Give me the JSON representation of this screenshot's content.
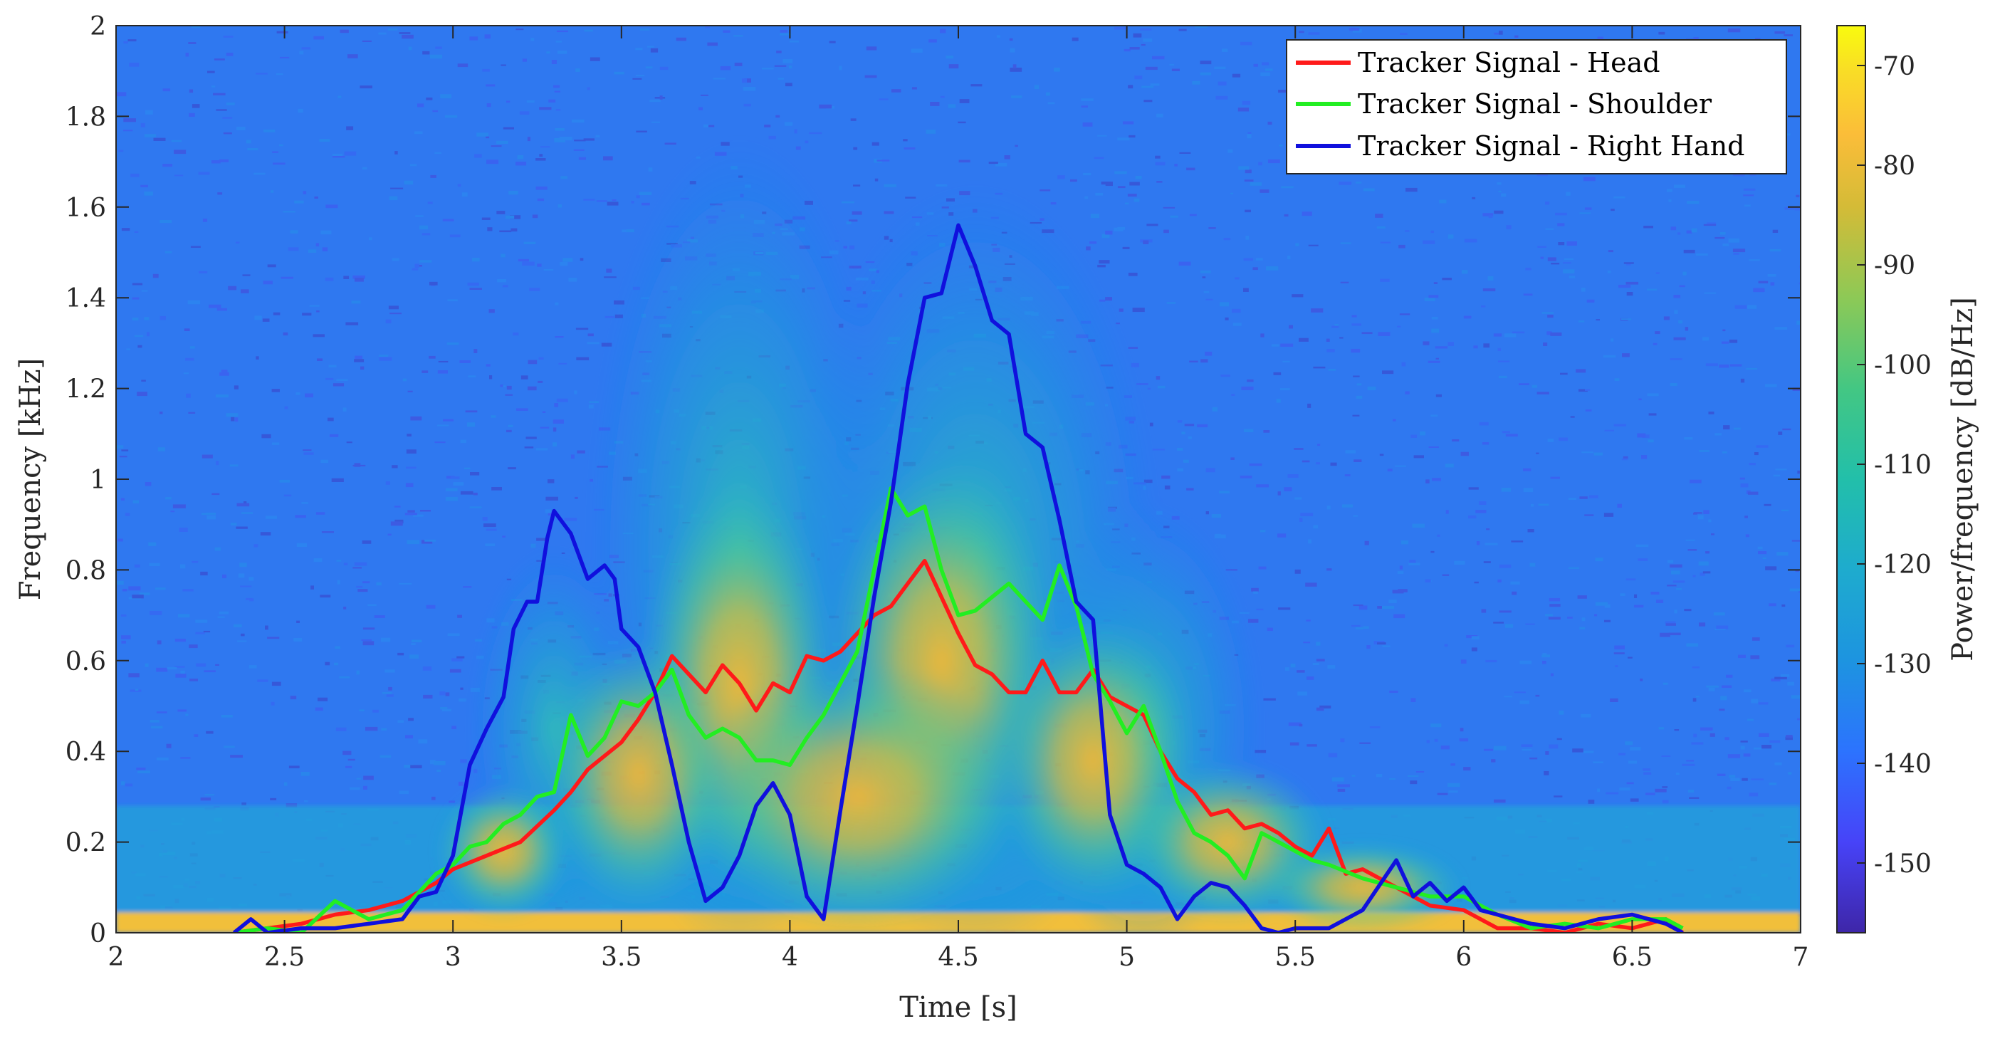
{
  "colors": {
    "head": "#ff1a1a",
    "shoulder": "#22ee22",
    "right_hand": "#1010dd",
    "colormap": [
      "#3e26a8",
      "#4743f8",
      "#2c73fe",
      "#1d94e0",
      "#1eabce",
      "#22bfaa",
      "#43c783",
      "#8dc956",
      "#d4bb37",
      "#fbbd39",
      "#f9dd26",
      "#f9fb0e"
    ]
  },
  "chart_data": {
    "type": "spectrogram",
    "xlabel": "Time [s]",
    "ylabel": "Frequency [kHz]",
    "xlim": [
      2,
      7
    ],
    "ylim": [
      0,
      2
    ],
    "xticks": [
      "2",
      "2.5",
      "3",
      "3.5",
      "4",
      "4.5",
      "5",
      "5.5",
      "6",
      "6.5",
      "7"
    ],
    "yticks": [
      "0",
      "0.2",
      "0.4",
      "0.6",
      "0.8",
      "1",
      "1.2",
      "1.4",
      "1.6",
      "1.8",
      "2"
    ],
    "legend_position": "top-right",
    "colorbar": {
      "label": "Power/frequency [dB/Hz]",
      "range": [
        -157,
        -66
      ],
      "ticks": [
        "-70",
        "-80",
        "-90",
        "-100",
        "-110",
        "-120",
        "-130",
        "-140",
        "-150"
      ]
    },
    "series": [
      {
        "name": "Tracker Signal - Head",
        "color_key": "head",
        "points": [
          [
            2.35,
            0.0
          ],
          [
            2.45,
            0.01
          ],
          [
            2.55,
            0.02
          ],
          [
            2.65,
            0.04
          ],
          [
            2.75,
            0.05
          ],
          [
            2.85,
            0.07
          ],
          [
            2.95,
            0.11
          ],
          [
            3.0,
            0.14
          ],
          [
            3.1,
            0.17
          ],
          [
            3.2,
            0.2
          ],
          [
            3.3,
            0.27
          ],
          [
            3.35,
            0.31
          ],
          [
            3.4,
            0.36
          ],
          [
            3.45,
            0.39
          ],
          [
            3.5,
            0.42
          ],
          [
            3.55,
            0.47
          ],
          [
            3.6,
            0.53
          ],
          [
            3.65,
            0.61
          ],
          [
            3.7,
            0.57
          ],
          [
            3.75,
            0.53
          ],
          [
            3.8,
            0.59
          ],
          [
            3.85,
            0.55
          ],
          [
            3.9,
            0.49
          ],
          [
            3.95,
            0.55
          ],
          [
            4.0,
            0.53
          ],
          [
            4.05,
            0.61
          ],
          [
            4.1,
            0.6
          ],
          [
            4.15,
            0.62
          ],
          [
            4.2,
            0.66
          ],
          [
            4.25,
            0.7
          ],
          [
            4.3,
            0.72
          ],
          [
            4.35,
            0.77
          ],
          [
            4.4,
            0.82
          ],
          [
            4.45,
            0.74
          ],
          [
            4.5,
            0.66
          ],
          [
            4.55,
            0.59
          ],
          [
            4.6,
            0.57
          ],
          [
            4.65,
            0.53
          ],
          [
            4.7,
            0.53
          ],
          [
            4.75,
            0.6
          ],
          [
            4.8,
            0.53
          ],
          [
            4.85,
            0.53
          ],
          [
            4.9,
            0.58
          ],
          [
            4.95,
            0.52
          ],
          [
            5.0,
            0.5
          ],
          [
            5.05,
            0.48
          ],
          [
            5.1,
            0.4
          ],
          [
            5.15,
            0.34
          ],
          [
            5.2,
            0.31
          ],
          [
            5.25,
            0.26
          ],
          [
            5.3,
            0.27
          ],
          [
            5.35,
            0.23
          ],
          [
            5.4,
            0.24
          ],
          [
            5.45,
            0.22
          ],
          [
            5.5,
            0.19
          ],
          [
            5.55,
            0.17
          ],
          [
            5.6,
            0.23
          ],
          [
            5.65,
            0.13
          ],
          [
            5.7,
            0.14
          ],
          [
            5.8,
            0.1
          ],
          [
            5.9,
            0.06
          ],
          [
            6.0,
            0.05
          ],
          [
            6.1,
            0.01
          ],
          [
            6.2,
            0.01
          ],
          [
            6.3,
            0.0
          ],
          [
            6.4,
            0.02
          ],
          [
            6.5,
            0.01
          ],
          [
            6.6,
            0.03
          ],
          [
            6.65,
            0.0
          ]
        ]
      },
      {
        "name": "Tracker Signal - Shoulder",
        "color_key": "shoulder",
        "points": [
          [
            2.35,
            0.0
          ],
          [
            2.45,
            0.01
          ],
          [
            2.55,
            0.0
          ],
          [
            2.65,
            0.07
          ],
          [
            2.75,
            0.03
          ],
          [
            2.85,
            0.05
          ],
          [
            2.95,
            0.13
          ],
          [
            3.0,
            0.15
          ],
          [
            3.05,
            0.19
          ],
          [
            3.1,
            0.2
          ],
          [
            3.15,
            0.24
          ],
          [
            3.2,
            0.26
          ],
          [
            3.25,
            0.3
          ],
          [
            3.3,
            0.31
          ],
          [
            3.35,
            0.48
          ],
          [
            3.4,
            0.39
          ],
          [
            3.45,
            0.43
          ],
          [
            3.5,
            0.51
          ],
          [
            3.55,
            0.5
          ],
          [
            3.6,
            0.53
          ],
          [
            3.65,
            0.58
          ],
          [
            3.7,
            0.48
          ],
          [
            3.75,
            0.43
          ],
          [
            3.8,
            0.45
          ],
          [
            3.85,
            0.43
          ],
          [
            3.9,
            0.38
          ],
          [
            3.95,
            0.38
          ],
          [
            4.0,
            0.37
          ],
          [
            4.05,
            0.43
          ],
          [
            4.1,
            0.48
          ],
          [
            4.15,
            0.55
          ],
          [
            4.2,
            0.62
          ],
          [
            4.25,
            0.8
          ],
          [
            4.3,
            0.98
          ],
          [
            4.35,
            0.92
          ],
          [
            4.4,
            0.94
          ],
          [
            4.45,
            0.8
          ],
          [
            4.5,
            0.7
          ],
          [
            4.55,
            0.71
          ],
          [
            4.6,
            0.74
          ],
          [
            4.65,
            0.77
          ],
          [
            4.7,
            0.73
          ],
          [
            4.75,
            0.69
          ],
          [
            4.8,
            0.81
          ],
          [
            4.85,
            0.72
          ],
          [
            4.9,
            0.57
          ],
          [
            4.95,
            0.51
          ],
          [
            5.0,
            0.44
          ],
          [
            5.05,
            0.5
          ],
          [
            5.1,
            0.4
          ],
          [
            5.15,
            0.29
          ],
          [
            5.2,
            0.22
          ],
          [
            5.25,
            0.2
          ],
          [
            5.3,
            0.17
          ],
          [
            5.35,
            0.12
          ],
          [
            5.4,
            0.22
          ],
          [
            5.45,
            0.2
          ],
          [
            5.5,
            0.18
          ],
          [
            5.55,
            0.16
          ],
          [
            5.6,
            0.15
          ],
          [
            5.7,
            0.12
          ],
          [
            5.8,
            0.1
          ],
          [
            5.9,
            0.08
          ],
          [
            6.0,
            0.08
          ],
          [
            6.1,
            0.04
          ],
          [
            6.2,
            0.01
          ],
          [
            6.3,
            0.02
          ],
          [
            6.4,
            0.01
          ],
          [
            6.5,
            0.03
          ],
          [
            6.6,
            0.03
          ],
          [
            6.65,
            0.01
          ]
        ]
      },
      {
        "name": "Tracker Signal - Right Hand",
        "color_key": "right_hand",
        "points": [
          [
            2.35,
            0.0
          ],
          [
            2.4,
            0.03
          ],
          [
            2.45,
            0.0
          ],
          [
            2.55,
            0.01
          ],
          [
            2.65,
            0.01
          ],
          [
            2.75,
            0.02
          ],
          [
            2.85,
            0.03
          ],
          [
            2.9,
            0.08
          ],
          [
            2.95,
            0.09
          ],
          [
            3.0,
            0.17
          ],
          [
            3.05,
            0.37
          ],
          [
            3.1,
            0.45
          ],
          [
            3.15,
            0.52
          ],
          [
            3.18,
            0.67
          ],
          [
            3.22,
            0.73
          ],
          [
            3.25,
            0.73
          ],
          [
            3.28,
            0.87
          ],
          [
            3.3,
            0.93
          ],
          [
            3.35,
            0.88
          ],
          [
            3.4,
            0.78
          ],
          [
            3.45,
            0.81
          ],
          [
            3.48,
            0.78
          ],
          [
            3.5,
            0.67
          ],
          [
            3.55,
            0.63
          ],
          [
            3.6,
            0.53
          ],
          [
            3.65,
            0.37
          ],
          [
            3.7,
            0.2
          ],
          [
            3.75,
            0.07
          ],
          [
            3.8,
            0.1
          ],
          [
            3.85,
            0.17
          ],
          [
            3.9,
            0.28
          ],
          [
            3.95,
            0.33
          ],
          [
            4.0,
            0.26
          ],
          [
            4.05,
            0.08
          ],
          [
            4.1,
            0.03
          ],
          [
            4.15,
            0.27
          ],
          [
            4.2,
            0.5
          ],
          [
            4.25,
            0.74
          ],
          [
            4.3,
            0.95
          ],
          [
            4.35,
            1.21
          ],
          [
            4.4,
            1.4
          ],
          [
            4.45,
            1.41
          ],
          [
            4.5,
            1.56
          ],
          [
            4.55,
            1.47
          ],
          [
            4.6,
            1.35
          ],
          [
            4.65,
            1.32
          ],
          [
            4.7,
            1.1
          ],
          [
            4.75,
            1.07
          ],
          [
            4.8,
            0.91
          ],
          [
            4.85,
            0.73
          ],
          [
            4.9,
            0.69
          ],
          [
            4.95,
            0.26
          ],
          [
            5.0,
            0.15
          ],
          [
            5.05,
            0.13
          ],
          [
            5.1,
            0.1
          ],
          [
            5.15,
            0.03
          ],
          [
            5.2,
            0.08
          ],
          [
            5.25,
            0.11
          ],
          [
            5.3,
            0.1
          ],
          [
            5.35,
            0.06
          ],
          [
            5.4,
            0.01
          ],
          [
            5.45,
            0.0
          ],
          [
            5.5,
            0.01
          ],
          [
            5.6,
            0.01
          ],
          [
            5.7,
            0.05
          ],
          [
            5.8,
            0.16
          ],
          [
            5.85,
            0.08
          ],
          [
            5.9,
            0.11
          ],
          [
            5.95,
            0.07
          ],
          [
            6.0,
            0.1
          ],
          [
            6.05,
            0.05
          ],
          [
            6.1,
            0.04
          ],
          [
            6.2,
            0.02
          ],
          [
            6.3,
            0.01
          ],
          [
            6.4,
            0.03
          ],
          [
            6.5,
            0.04
          ],
          [
            6.6,
            0.02
          ],
          [
            6.65,
            0.0
          ]
        ]
      }
    ]
  }
}
